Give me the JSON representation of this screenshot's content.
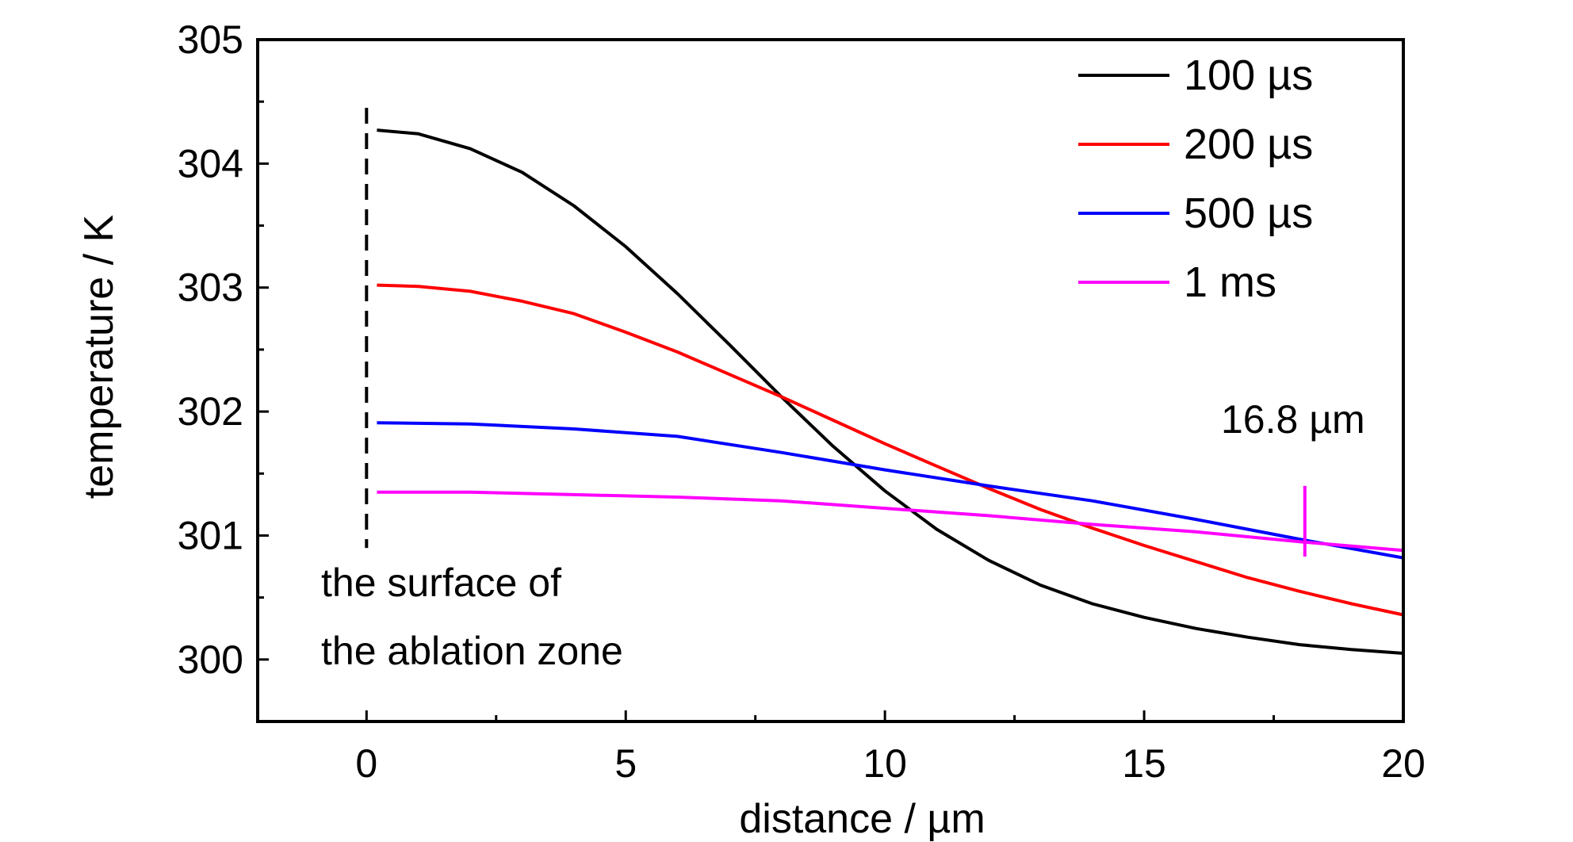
{
  "chart_data": {
    "type": "line",
    "xlabel": "distance / µm",
    "ylabel": "temperature / K",
    "xlim": [
      -2.1,
      20
    ],
    "ylim": [
      299.5,
      305
    ],
    "x_ticks": [
      0,
      5,
      10,
      15,
      20
    ],
    "y_ticks": [
      300,
      301,
      302,
      303,
      304,
      305
    ],
    "legend_position": "top-right",
    "series": [
      {
        "name": "100 µs",
        "color": "#000000",
        "x": [
          0.2,
          1,
          2,
          3,
          4,
          5,
          6,
          7,
          8,
          9,
          10,
          11,
          12,
          13,
          14,
          15,
          16,
          17,
          18,
          19,
          20
        ],
        "y": [
          304.27,
          304.24,
          304.12,
          303.93,
          303.66,
          303.33,
          302.95,
          302.54,
          302.12,
          301.72,
          301.36,
          301.05,
          300.8,
          300.6,
          300.45,
          300.34,
          300.25,
          300.18,
          300.12,
          300.08,
          300.05
        ]
      },
      {
        "name": "200 µs",
        "color": "#ff0000",
        "x": [
          0.2,
          1,
          2,
          3,
          4,
          5,
          6,
          7,
          8,
          9,
          10,
          11,
          12,
          13,
          14,
          15,
          16,
          17,
          18,
          19,
          20
        ],
        "y": [
          303.02,
          303.01,
          302.97,
          302.89,
          302.79,
          302.64,
          302.48,
          302.3,
          302.12,
          301.93,
          301.74,
          301.56,
          301.38,
          301.21,
          301.06,
          300.92,
          300.79,
          300.66,
          300.55,
          300.45,
          300.36
        ]
      },
      {
        "name": "500 µs",
        "color": "#0000ff",
        "x": [
          0.2,
          2,
          4,
          6,
          8,
          10,
          12,
          14,
          16,
          18,
          20
        ],
        "y": [
          301.91,
          301.9,
          301.86,
          301.8,
          301.67,
          301.53,
          301.4,
          301.28,
          301.13,
          300.97,
          300.82
        ]
      },
      {
        "name": "1 ms",
        "color": "#ff00ff",
        "x": [
          0.2,
          2,
          4,
          6,
          8,
          10,
          12,
          14,
          16,
          18,
          20
        ],
        "y": [
          301.35,
          301.35,
          301.33,
          301.31,
          301.28,
          301.22,
          301.16,
          301.09,
          301.03,
          300.95,
          300.88
        ]
      }
    ],
    "annotations": {
      "surface_x": 0,
      "surface_ymin": 300.9,
      "surface_ymax": 304.45,
      "surface_label_line1": "the surface of",
      "surface_label_line2": "the ablation zone",
      "marker_x": 18.1,
      "marker_ymin": 300.83,
      "marker_ymax": 301.4,
      "marker_color": "#ff00ff",
      "marker_label": "16.8 µm"
    }
  }
}
